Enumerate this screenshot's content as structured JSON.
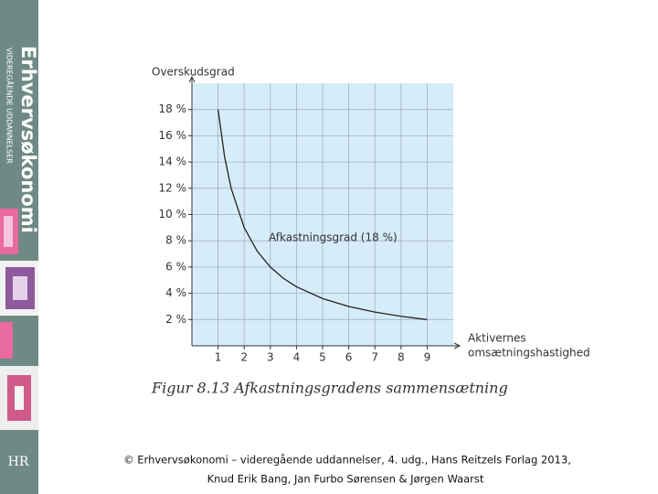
{
  "sidebar": {
    "brand": "Erhvervsøkonomi",
    "subtitle": "VIDEREGÅENDE UDDANNELSER",
    "logo": "HR"
  },
  "chart_data": {
    "type": "line",
    "ylabel": "Overskudsgrad",
    "xlabel_lines": [
      "Aktivernes",
      "omsætningshastighed"
    ],
    "annotation": "Afkastningsgrad (18 %)",
    "caption": "Figur 8.13 Afkastningsgradens sammensætning",
    "x": [
      1,
      1.25,
      1.5,
      2,
      2.5,
      3,
      3.5,
      4,
      5,
      6,
      7,
      8,
      9
    ],
    "values": [
      18,
      14.4,
      12,
      9,
      7.2,
      6,
      5.14,
      4.5,
      3.6,
      3,
      2.57,
      2.25,
      2
    ],
    "color": "#222222",
    "xlim": [
      0,
      10
    ],
    "ylim": [
      0,
      20
    ],
    "xticks": [
      1,
      2,
      3,
      4,
      5,
      6,
      7,
      8,
      9
    ],
    "yticks": [
      {
        "value": 2,
        "label": "2 %"
      },
      {
        "value": 4,
        "label": "4 %"
      },
      {
        "value": 6,
        "label": "6 %"
      },
      {
        "value": 8,
        "label": "8 %"
      },
      {
        "value": 10,
        "label": "10 %"
      },
      {
        "value": 12,
        "label": "12 %"
      },
      {
        "value": 14,
        "label": "14 %"
      },
      {
        "value": 16,
        "label": "16 %"
      },
      {
        "value": 18,
        "label": "18 %"
      }
    ],
    "grid": true
  },
  "footer": {
    "lines": [
      "© Erhvervsøkonomi – videregående uddannelser, 4. udg., Hans Reitzels Forlag 2013,",
      "Knud Erik Bang, Jan Furbo Sørensen & Jørgen Waarst"
    ]
  }
}
